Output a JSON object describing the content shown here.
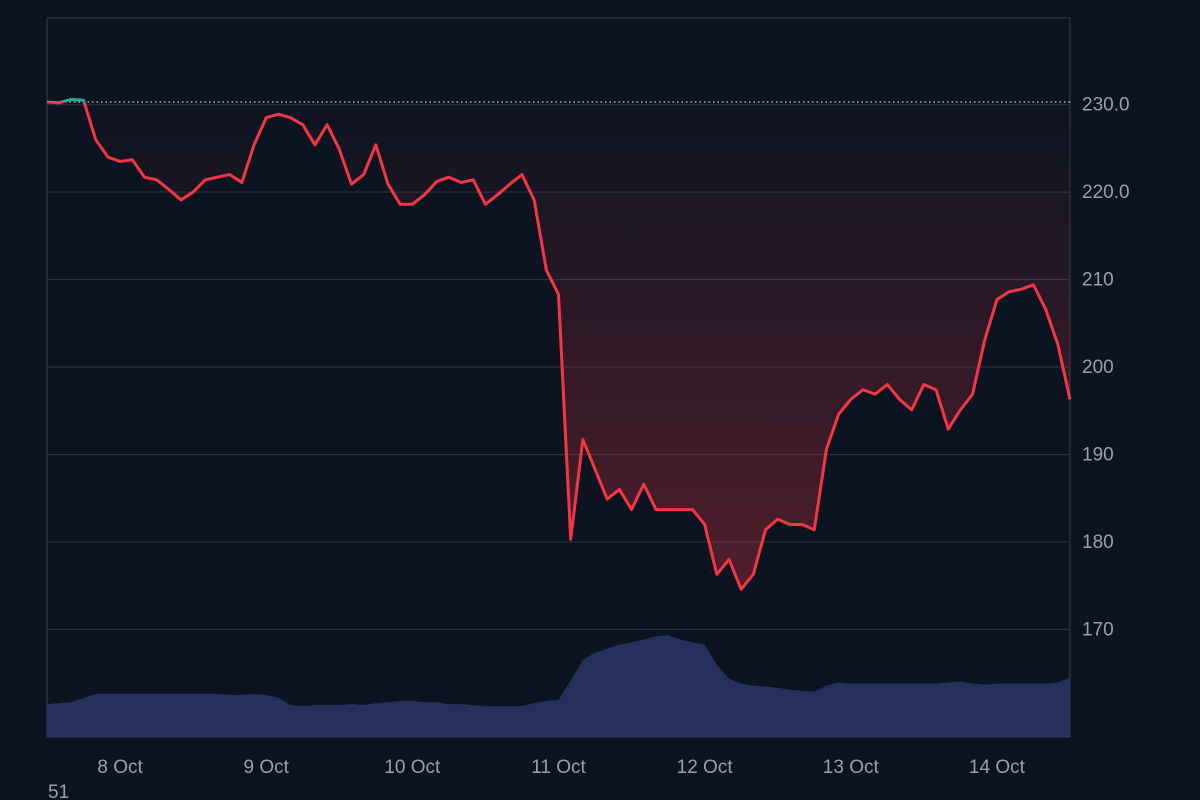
{
  "chart_data": {
    "type": "line",
    "x": [
      0,
      1,
      2,
      3,
      4,
      5,
      6,
      7,
      8,
      9,
      10,
      11,
      12,
      13,
      14,
      15,
      16,
      17,
      18,
      19,
      20,
      21,
      22,
      23,
      24,
      25,
      26,
      27,
      28,
      29,
      30,
      31,
      32,
      33,
      34,
      35,
      36,
      37,
      38,
      39,
      40,
      41,
      42,
      43,
      44,
      45,
      46,
      47,
      48,
      49,
      50,
      51,
      52,
      53,
      54,
      55,
      56,
      57,
      58,
      59,
      60,
      61,
      62,
      63,
      64,
      65,
      66,
      67,
      68,
      69,
      70,
      71,
      72,
      73,
      74,
      75,
      76,
      77,
      78,
      79,
      80,
      81,
      82,
      83,
      84
    ],
    "xlim": [
      0,
      84
    ],
    "xticks": [
      {
        "value": 6,
        "label": "8 Oct"
      },
      {
        "value": 18,
        "label": "9 Oct"
      },
      {
        "value": 30,
        "label": "10 Oct"
      },
      {
        "value": 42,
        "label": "11 Oct"
      },
      {
        "value": 54,
        "label": "12 Oct"
      },
      {
        "value": 66,
        "label": "13 Oct"
      },
      {
        "value": 78,
        "label": "14 Oct"
      }
    ],
    "ylim": [
      157.7,
      239.9
    ],
    "yticks": [
      {
        "value": 230,
        "label": "230.0"
      },
      {
        "value": 220,
        "label": "220.0"
      },
      210,
      200,
      190,
      180,
      170
    ],
    "grid": true,
    "baseline": 230.3,
    "series": [
      {
        "color": "#f23645",
        "above_color": "#22ab94",
        "values": [
          230.3,
          230.2,
          230.6,
          230.5,
          226,
          224,
          223.5,
          223.7,
          221.7,
          221.4,
          220.3,
          219.1,
          220,
          221.4,
          221.7,
          222,
          221.1,
          225.4,
          228.5,
          228.9,
          228.5,
          227.7,
          225.4,
          227.7,
          224.9,
          220.9,
          222,
          225.4,
          220.9,
          218.6,
          218.6,
          219.7,
          221.2,
          221.7,
          221.1,
          221.4,
          218.6,
          219.7,
          220.9,
          222,
          219.1,
          211.1,
          208.3,
          180.3,
          191.7,
          188.3,
          184.9,
          186,
          183.7,
          186.6,
          183.7,
          183.7,
          183.7,
          183.7,
          182,
          176.3,
          178,
          174.6,
          176.3,
          181.4,
          182.6,
          182,
          182,
          181.4,
          190.6,
          194.6,
          196.3,
          197.4,
          196.9,
          198,
          196.3,
          195.1,
          198,
          197.4,
          192.9,
          195.1,
          196.9,
          203.1,
          207.7,
          208.6,
          208.9,
          209.4,
          206.6,
          202.6,
          196.3
        ]
      }
    ],
    "volume": {
      "color": "#2b3566",
      "axis": "y2",
      "values": [
        32,
        33,
        34,
        38,
        42,
        42,
        42,
        42,
        42,
        42,
        42,
        42,
        42,
        42,
        42,
        41,
        41,
        42,
        41,
        38,
        31,
        30,
        31,
        31,
        31,
        32,
        31,
        33,
        34,
        35,
        35,
        34,
        34,
        32,
        32,
        31,
        30,
        30,
        30,
        30,
        33,
        35,
        36,
        55,
        75,
        82,
        86,
        90,
        92,
        95,
        98,
        99,
        95,
        92,
        90,
        70,
        57,
        52,
        50,
        49,
        48,
        46,
        45,
        44,
        50,
        53,
        52,
        52,
        52,
        52,
        52,
        52,
        52,
        52,
        53,
        54,
        52,
        51,
        52,
        52,
        52,
        52,
        52,
        53,
        58
      ]
    },
    "y2lim": [
      0,
      700
    ],
    "footer_text": "51"
  }
}
